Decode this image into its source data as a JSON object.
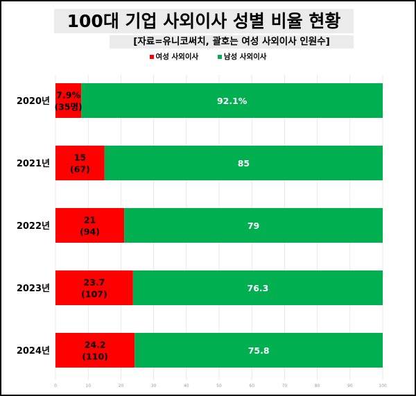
{
  "chart_data": {
    "type": "bar",
    "orientation": "horizontal",
    "stacked": true,
    "title": "100대 기업 사외이사 성별 비율 현황",
    "subtitle": "[자료=유니코써치, 괄호는 여성 사외이사 인원수]",
    "categories": [
      "2020년",
      "2021년",
      "2022년",
      "2023년",
      "2024년"
    ],
    "series": [
      {
        "name": "여성 사외이사",
        "color": "#ff0000",
        "label_color": "#000000",
        "values": [
          7.9,
          15,
          21,
          23.7,
          24.2
        ],
        "labels": [
          [
            "7.9%",
            "(35명)"
          ],
          [
            "15",
            "(67)"
          ],
          [
            "21",
            "(94)"
          ],
          [
            "23.7",
            "(107)"
          ],
          [
            "24.2",
            "(110)"
          ]
        ]
      },
      {
        "name": "남성 사외이사",
        "color": "#00b050",
        "label_color": "#ffffff",
        "values": [
          92.1,
          85,
          79,
          76.3,
          75.8
        ],
        "labels": [
          [
            "92.1%"
          ],
          [
            "85"
          ],
          [
            "79"
          ],
          [
            "76.3"
          ],
          [
            "75.8"
          ]
        ]
      }
    ],
    "xlim": [
      0,
      100
    ],
    "xticks": [
      0,
      10,
      20,
      30,
      40,
      50,
      60,
      70,
      80,
      90,
      100
    ],
    "grid": true,
    "legend": "top-center"
  }
}
